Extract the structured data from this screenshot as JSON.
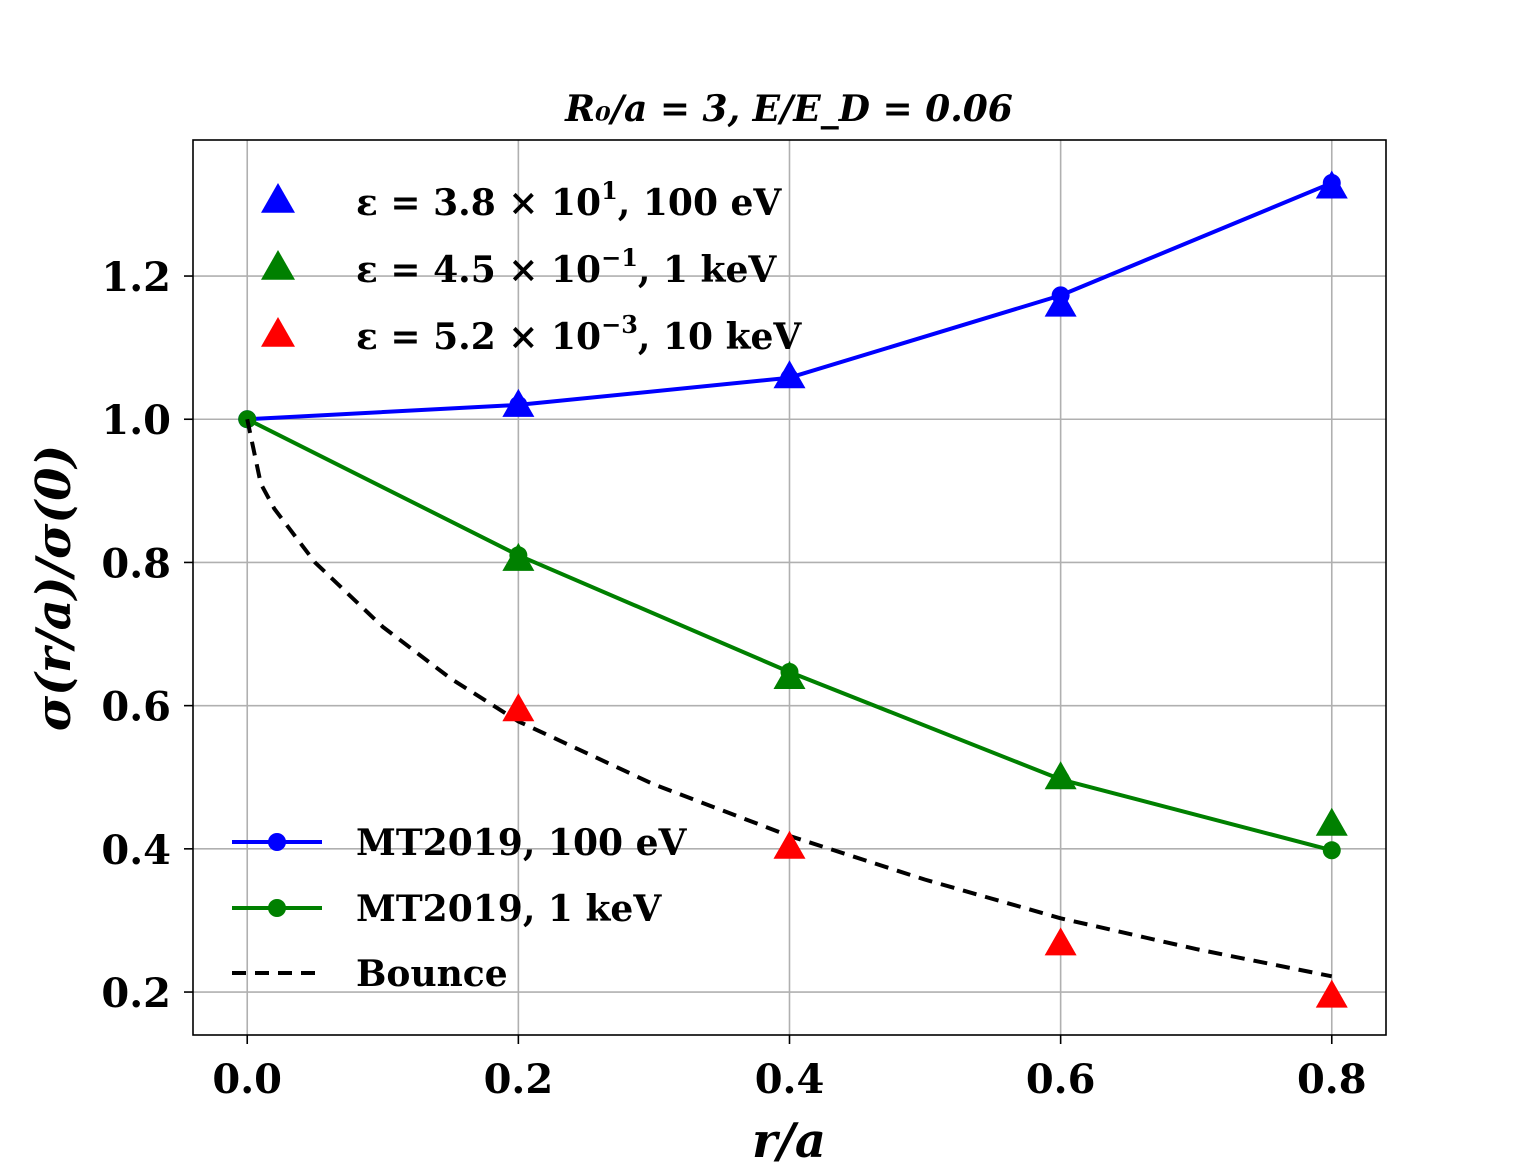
{
  "chart_data": {
    "type": "line",
    "title": "R₀/a = 3, E/E_D = 0.06",
    "xlabel": "r/a",
    "ylabel": "σ(r/a)/σ(0)",
    "xlim": [
      -0.04,
      0.84
    ],
    "ylim": [
      0.14,
      1.39
    ],
    "xticks": [
      0.0,
      0.2,
      0.4,
      0.6,
      0.8
    ],
    "xtick_labels": [
      "0.0",
      "0.2",
      "0.4",
      "0.6",
      "0.8"
    ],
    "yticks": [
      0.2,
      0.4,
      0.6,
      0.8,
      1.0,
      1.2
    ],
    "ytick_labels": [
      "0.2",
      "0.4",
      "0.6",
      "0.8",
      "1.0",
      "1.2"
    ],
    "grid": true,
    "line_series": [
      {
        "name": "MT2019, 100 eV",
        "color": "#0000ff",
        "style": "solid-dot",
        "x": [
          0.0,
          0.2,
          0.4,
          0.6,
          0.8
        ],
        "y": [
          1.0,
          1.02,
          1.058,
          1.173,
          1.33
        ]
      },
      {
        "name": "MT2019, 1 keV",
        "color": "#008000",
        "style": "solid-dot",
        "x": [
          0.0,
          0.2,
          0.4,
          0.6,
          0.8
        ],
        "y": [
          1.0,
          0.81,
          0.647,
          0.497,
          0.398
        ]
      },
      {
        "name": "Bounce",
        "color": "#000000",
        "style": "dashed",
        "x": [
          0.0,
          0.01,
          0.02,
          0.05,
          0.1,
          0.15,
          0.2,
          0.3,
          0.4,
          0.5,
          0.6,
          0.7,
          0.8
        ],
        "y": [
          1.0,
          0.91,
          0.875,
          0.8,
          0.71,
          0.638,
          0.578,
          0.49,
          0.418,
          0.357,
          0.303,
          0.26,
          0.222
        ]
      }
    ],
    "marker_series": [
      {
        "name": "ε = 3.8 × 10¹, 100 eV",
        "color": "#0000ff",
        "marker": "triangle",
        "x": [
          0.2,
          0.4,
          0.6,
          0.8
        ],
        "y": [
          1.02,
          1.06,
          1.16,
          1.325
        ]
      },
      {
        "name": "ε = 4.5 × 10⁻¹, 1 keV",
        "color": "#008000",
        "marker": "triangle",
        "x": [
          0.2,
          0.4,
          0.6,
          0.8
        ],
        "y": [
          0.805,
          0.64,
          0.5,
          0.435
        ]
      },
      {
        "name": "ε = 5.2 × 10⁻³, 10 keV",
        "color": "#ff0000",
        "marker": "triangle",
        "x": [
          0.2,
          0.4,
          0.6,
          0.8
        ],
        "y": [
          0.595,
          0.403,
          0.268,
          0.195
        ]
      }
    ],
    "legend_top": {
      "placement": "upper-left",
      "entries": [
        {
          "prefix": "ε = 3.8 × 10",
          "exp": "1",
          "suffix": ", 100 eV"
        },
        {
          "prefix": "ε = 4.5 × 10",
          "exp": "−1",
          "suffix": ", 1 keV"
        },
        {
          "prefix": "ε = 5.2 × 10",
          "exp": "−3",
          "suffix": ", 10 keV"
        }
      ]
    },
    "legend_bottom": {
      "placement": "lower-left",
      "entries": [
        "MT2019, 100 eV",
        "MT2019, 1 keV",
        "Bounce"
      ]
    }
  }
}
